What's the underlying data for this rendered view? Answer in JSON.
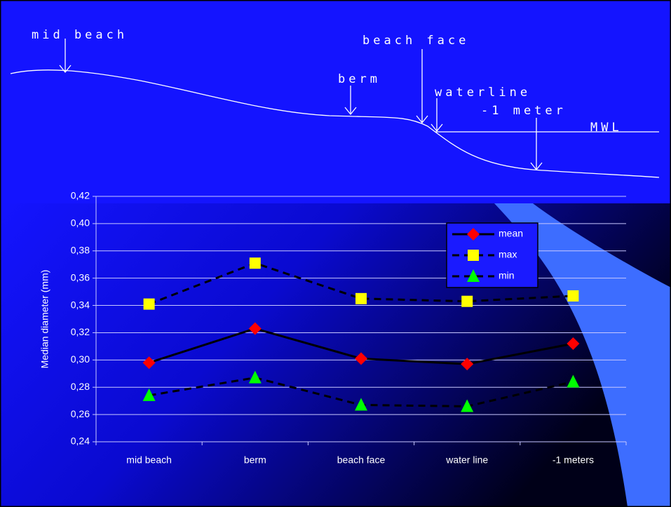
{
  "diagram": {
    "labels": [
      "mid beach",
      "beach face",
      "berm",
      "waterline",
      "-1 meter",
      "MWL"
    ]
  },
  "chart_data": {
    "type": "line",
    "y_label": "Median diameter (mm)",
    "categories": [
      "mid beach",
      "berm",
      "beach face",
      "water line",
      "-1 meters"
    ],
    "series": [
      {
        "name": "mean",
        "color": "#ff0000",
        "marker": "diamond",
        "line_style": "solid",
        "values": [
          0.298,
          0.323,
          0.301,
          0.297,
          0.312
        ]
      },
      {
        "name": "max",
        "color": "#ffff00",
        "marker": "square",
        "line_style": "dashed",
        "values": [
          0.341,
          0.371,
          0.345,
          0.343,
          0.347
        ]
      },
      {
        "name": "min",
        "color": "#00ff00",
        "marker": "triangle",
        "line_style": "dashed",
        "values": [
          0.274,
          0.287,
          0.267,
          0.266,
          0.284
        ]
      }
    ],
    "ylim": [
      0.24,
      0.42
    ],
    "yticks": [
      {
        "value": 0.24,
        "label": "0,24"
      },
      {
        "value": 0.26,
        "label": "0,26"
      },
      {
        "value": 0.28,
        "label": "0,28"
      },
      {
        "value": 0.3,
        "label": "0,30"
      },
      {
        "value": 0.32,
        "label": "0,32"
      },
      {
        "value": 0.34,
        "label": "0,34"
      },
      {
        "value": 0.36,
        "label": "0,36"
      },
      {
        "value": 0.38,
        "label": "0,38"
      },
      {
        "value": 0.4,
        "label": "0,40"
      },
      {
        "value": 0.42,
        "label": "0,42"
      }
    ],
    "grid": true,
    "legend": "upper right"
  }
}
